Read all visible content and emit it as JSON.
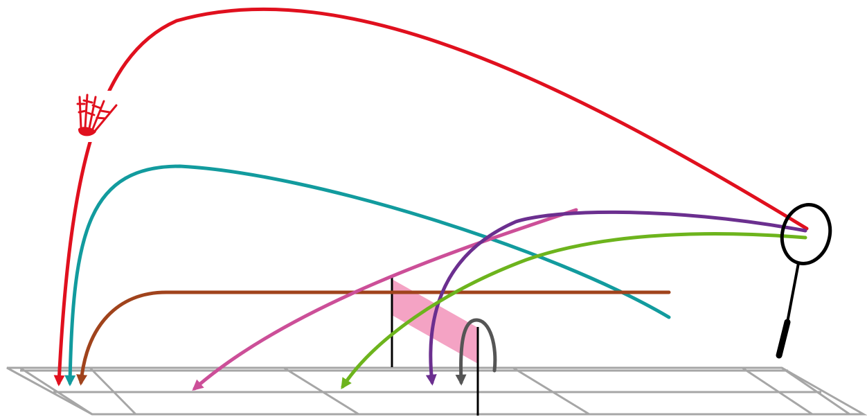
{
  "diagram": {
    "type": "badminton-shot-trajectories",
    "colors": {
      "court_lines": "#a6a6a6",
      "net_band": "#f4a3c4",
      "net_post": "#000000",
      "racket": "#000000",
      "logo": "#e0101e"
    },
    "logo_icon": "shuttlecock-logo",
    "racket_icon": "badminton-racket",
    "trajectories": [
      {
        "id": "clear",
        "color": "#e0101e"
      },
      {
        "id": "high-shot",
        "color": "#129b9e"
      },
      {
        "id": "drive",
        "color": "#a0431c"
      },
      {
        "id": "smash",
        "color": "#cc4f98"
      },
      {
        "id": "drop-shot",
        "color": "#6b2f8f"
      },
      {
        "id": "half-smash",
        "color": "#6db41d"
      },
      {
        "id": "net-shot",
        "color": "#555555"
      }
    ]
  }
}
